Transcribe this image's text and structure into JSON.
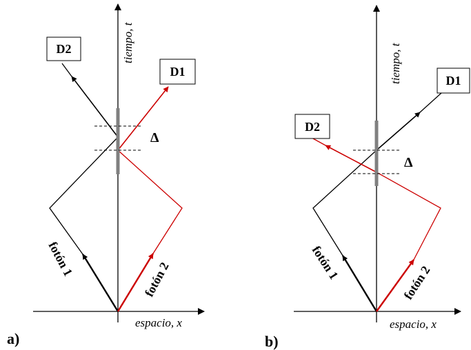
{
  "panel_a": {
    "label": "a)",
    "axis_x_label": "espacio, x",
    "axis_t_label": "tiempo, t",
    "detector_1": "D1",
    "detector_2": "D2",
    "photon_1": "fotón 1",
    "photon_2": "fotón 2",
    "delay_symbol": "Δ"
  },
  "panel_b": {
    "label": "b)",
    "axis_x_label": "espacio, x",
    "axis_t_label": "tiempo, t",
    "detector_1": "D1",
    "detector_2": "D2",
    "photon_1": "fotón 1",
    "photon_2": "fotón 2",
    "delay_symbol": "Δ"
  },
  "colors": {
    "photon_1": "#000000",
    "photon_2": "#cc0000",
    "beam_splitter": "#808080"
  }
}
